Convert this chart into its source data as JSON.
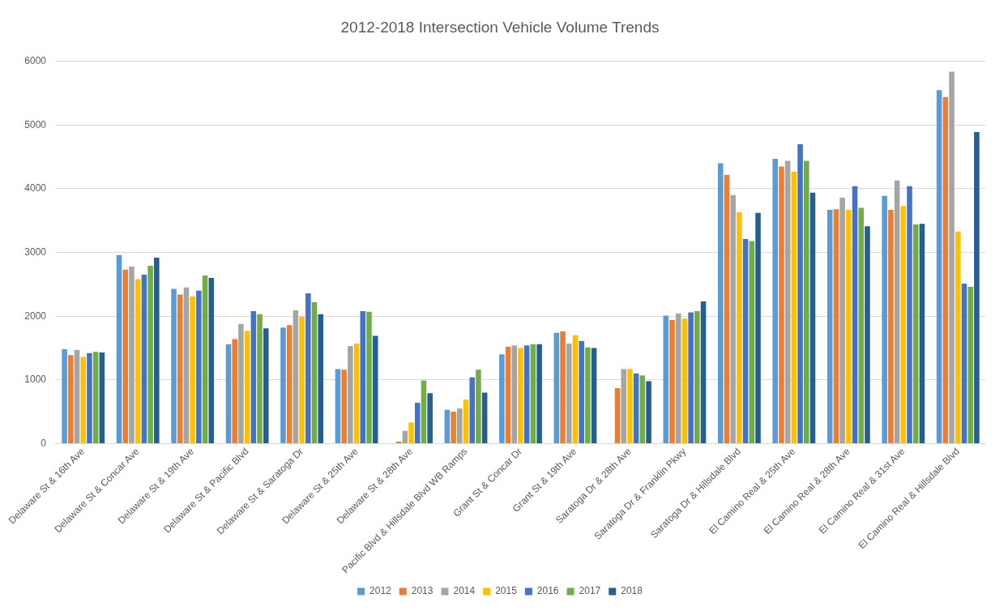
{
  "chart_data": {
    "type": "bar",
    "title": "2012-2018 Intersection Vehicle Volume Trends",
    "categories": [
      "Delaware St & 16th Ave",
      "Delaware St & Concar Ave",
      "Delaware St & 19th Ave",
      "Delaware St & Pacific Blvd",
      "Delaware St & Saratoga Dr",
      "Delaware St & 25th Ave",
      "Delaware St & 28th Ave",
      "Pacific Blvd & Hillsdale Blvd WB Ramps",
      "Grant St & Concar Dr",
      "Grant St & 19th Ave",
      "Saratoga Dr & 28th Ave",
      "Saratoga Dr & Franklin Pkwy",
      "Saratoga Dr & Hillsdale Blvd",
      "El Camino Real & 25th Ave",
      "El Camino Real & 28th Ave",
      "El Camino Real & 31st Ave",
      "El Camino Real & Hillsdale Blvd"
    ],
    "series": [
      {
        "name": "2012",
        "color": "#5b9bd5",
        "values": [
          1480,
          2960,
          2430,
          1560,
          1820,
          1170,
          null,
          530,
          1400,
          1740,
          null,
          2010,
          4400,
          4470,
          3670,
          3890,
          5550
        ]
      },
      {
        "name": "2013",
        "color": "#ed7d31",
        "values": [
          1390,
          2730,
          2340,
          1640,
          1860,
          1160,
          30,
          500,
          1520,
          1760,
          870,
          1940,
          4220,
          4350,
          3680,
          3670,
          5440
        ]
      },
      {
        "name": "2014",
        "color": "#a5a5a5",
        "values": [
          1470,
          2780,
          2450,
          1880,
          2090,
          1530,
          200,
          550,
          1540,
          1570,
          1170,
          2040,
          3900,
          4440,
          3860,
          4130,
          5840
        ]
      },
      {
        "name": "2015",
        "color": "#ffc000",
        "values": [
          1360,
          2580,
          2310,
          1770,
          1990,
          1570,
          330,
          690,
          1500,
          1700,
          1170,
          1960,
          3630,
          4270,
          3670,
          3730,
          3330
        ]
      },
      {
        "name": "2016",
        "color": "#4472c4",
        "values": [
          1420,
          2650,
          2400,
          2080,
          2360,
          2080,
          640,
          1040,
          1540,
          1610,
          1100,
          2060,
          3210,
          4700,
          4040,
          4040,
          2510
        ]
      },
      {
        "name": "2017",
        "color": "#70ad47",
        "values": [
          1440,
          2790,
          2640,
          2030,
          2220,
          2070,
          990,
          1160,
          1560,
          1510,
          1070,
          2080,
          3180,
          4440,
          3700,
          3440,
          2460
        ]
      },
      {
        "name": "2018",
        "color": "#255e91",
        "values": [
          1430,
          2920,
          2600,
          1810,
          2030,
          1690,
          790,
          800,
          1560,
          1500,
          980,
          2230,
          3620,
          3940,
          3410,
          3450,
          4890
        ]
      }
    ],
    "ylim": [
      0,
      6000
    ],
    "yticks": [
      0,
      1000,
      2000,
      3000,
      4000,
      5000,
      6000
    ],
    "grid": "y",
    "legend": "bottom"
  }
}
